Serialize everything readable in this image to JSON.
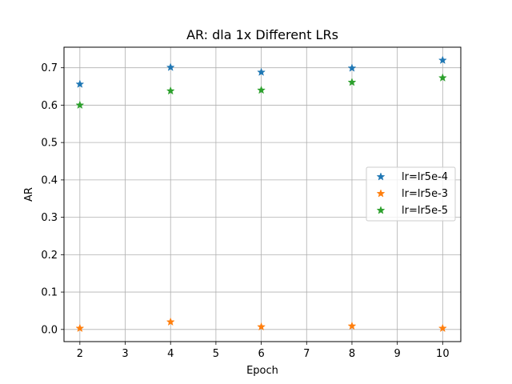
{
  "chart_data": {
    "type": "scatter",
    "title": "AR: dla 1x Different LRs",
    "xlabel": "Epoch",
    "ylabel": "AR",
    "xlim": [
      1.65,
      10.4
    ],
    "ylim": [
      -0.0325,
      0.755
    ],
    "xticks": [
      2,
      3,
      4,
      5,
      6,
      7,
      8,
      9,
      10
    ],
    "yticks": [
      0.0,
      0.1,
      0.2,
      0.3,
      0.4,
      0.5,
      0.6,
      0.7
    ],
    "grid": true,
    "legend_position": "center-right",
    "marker": "star",
    "series": [
      {
        "name": "lr=lr5e-4",
        "color": "#1f77b4",
        "x": [
          2,
          4,
          6,
          8,
          10
        ],
        "y": [
          0.656,
          0.701,
          0.688,
          0.699,
          0.72
        ]
      },
      {
        "name": "lr=lr5e-3",
        "color": "#ff7f0e",
        "x": [
          2,
          4,
          6,
          8,
          10
        ],
        "y": [
          0.003,
          0.02,
          0.007,
          0.009,
          0.003
        ]
      },
      {
        "name": "lr=lr5e-5",
        "color": "#2ca02c",
        "x": [
          2,
          4,
          6,
          8,
          10
        ],
        "y": [
          0.6,
          0.638,
          0.64,
          0.661,
          0.673
        ]
      }
    ]
  }
}
